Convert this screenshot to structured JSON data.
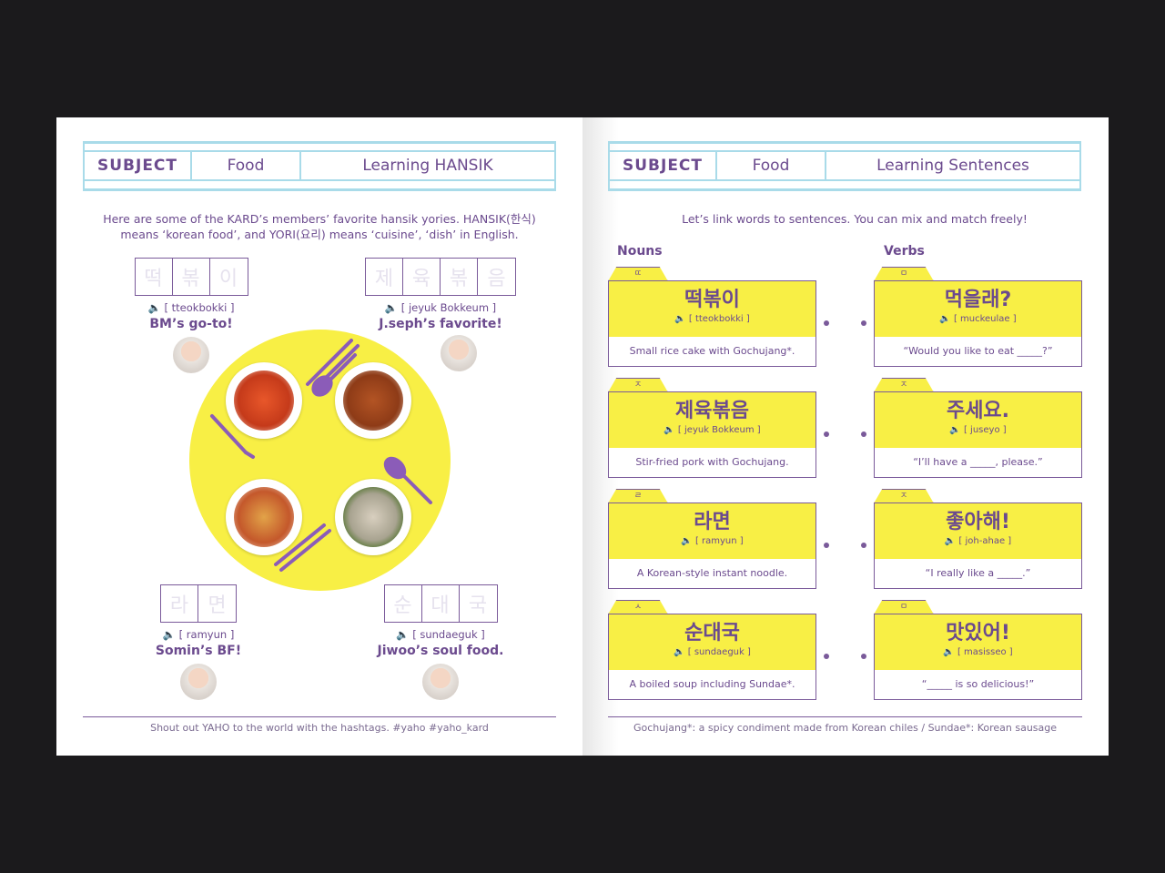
{
  "left": {
    "header": {
      "subject": "SUBJECT",
      "topic": "Food",
      "title": "Learning HANSIK"
    },
    "intro": [
      "Here are some of the KARD’s members’ favorite hansik yories. HANSIK(한식)",
      "means ‘korean food’, and YORI(요리) means ‘cuisine’, ‘dish’ in English."
    ],
    "words": [
      {
        "syllables": [
          "떡",
          "볶",
          "이"
        ],
        "pron": "🔈 [ tteokbokki ]",
        "caption": "BM’s go-to!"
      },
      {
        "syllables": [
          "제",
          "육",
          "볶",
          "음"
        ],
        "pron": "🔈 [ jeyuk Bokkeum ]",
        "caption": "J.seph’s favorite!"
      },
      {
        "syllables": [
          "라",
          "면"
        ],
        "pron": "🔈 [ ramyun ]",
        "caption": "Somin’s BF!"
      },
      {
        "syllables": [
          "순",
          "대",
          "국"
        ],
        "pron": "🔈 [ sundaeguk ]",
        "caption": "Jiwoo’s soul food."
      }
    ],
    "footer": "Shout out YAHO to the world with the hashtags. #yaho #yaho_kard"
  },
  "right": {
    "header": {
      "subject": "SUBJECT",
      "topic": "Food",
      "title": "Learning Sentences"
    },
    "intro": "Let’s link words to sentences. You can mix and match freely!",
    "nouns_label": "Nouns",
    "verbs_label": "Verbs",
    "nouns": [
      {
        "tab": "ㄸ",
        "korean": "떡볶이",
        "pron": "🔈 [ tteokbokki ]",
        "desc": "Small rice cake with Gochujang*."
      },
      {
        "tab": "ㅈ",
        "korean": "제육볶음",
        "pron": "🔈 [ jeyuk Bokkeum ]",
        "desc": "Stir-fried pork with Gochujang."
      },
      {
        "tab": "ㄹ",
        "korean": "라면",
        "pron": "🔈 [ ramyun ]",
        "desc": "A Korean-style instant noodle."
      },
      {
        "tab": "ㅅ",
        "korean": "순대국",
        "pron": "🔈 [ sundaeguk ]",
        "desc": "A boiled soup including Sundae*."
      }
    ],
    "verbs": [
      {
        "tab": "ㅁ",
        "korean": "먹을래?",
        "pron": "🔈 [ muckeulae ]",
        "desc": "“Would you like to eat _____?”"
      },
      {
        "tab": "ㅈ",
        "korean": "주세요.",
        "pron": "🔈 [ juseyo ]",
        "desc": "“I’ll have a _____, please.”"
      },
      {
        "tab": "ㅈ",
        "korean": "좋아해!",
        "pron": "🔈 [ joh-ahae ]",
        "desc": "“I really like a _____.”"
      },
      {
        "tab": "ㅁ",
        "korean": "맛있어!",
        "pron": "🔈 [ masisseo ]",
        "desc": "“_____ is so delicious!”"
      }
    ],
    "footer": "Gochujang*: a spicy condiment made from Korean chiles / Sundae*: Korean sausage"
  },
  "colors": {
    "purple": "#6b4a8e",
    "yellow": "#f8ef45",
    "header_border": "#a9dbe9"
  }
}
